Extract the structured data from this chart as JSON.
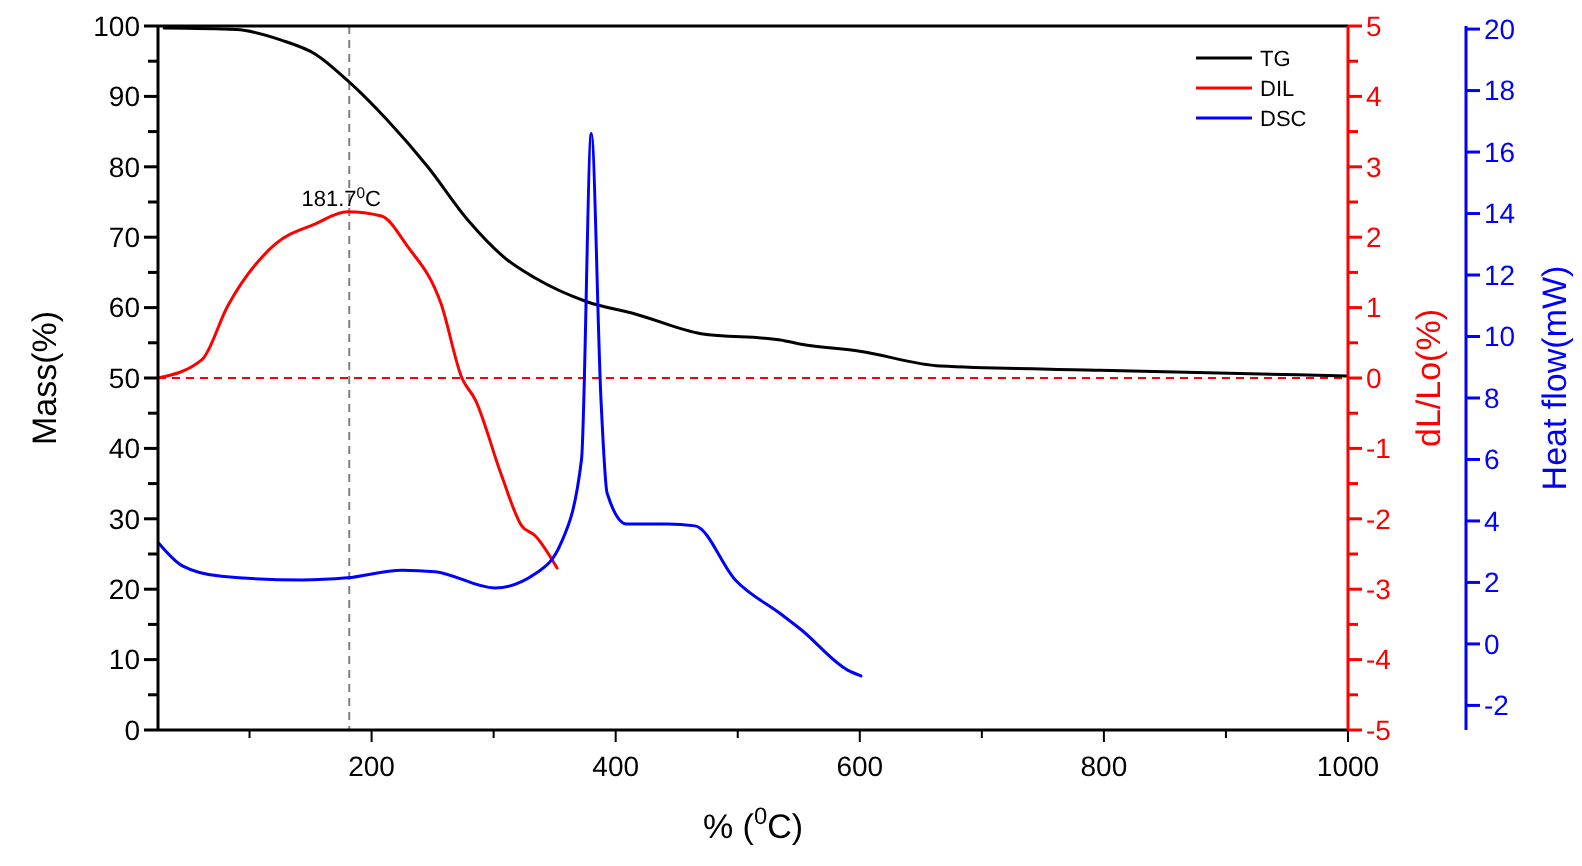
{
  "chart_data": {
    "type": "line",
    "xlabel": "% ($^{0}$C)",
    "ylabel": "Mass(%)",
    "y2label": "dL/Lo(%)",
    "y3label": "Heat flow(mW)",
    "xlim": [
      25,
      1000
    ],
    "xticks": [
      {
        "value": 100,
        "label": null
      },
      200,
      {
        "value": 300,
        "label": null
      },
      400,
      {
        "value": 500,
        "label": null
      },
      600,
      {
        "value": 700,
        "label": null
      },
      800,
      {
        "value": 900,
        "label": null
      },
      1000
    ],
    "ylim": [
      0,
      100
    ],
    "yticks": [
      0,
      {
        "value": 5,
        "label": null
      },
      10,
      {
        "value": 15,
        "label": null
      },
      20,
      {
        "value": 25,
        "label": null
      },
      30,
      {
        "value": 35,
        "label": null
      },
      40,
      {
        "value": 45,
        "label": null
      },
      50,
      {
        "value": 55,
        "label": null
      },
      60,
      {
        "value": 65,
        "label": null
      },
      70,
      {
        "value": 75,
        "label": null
      },
      80,
      {
        "value": 85,
        "label": null
      },
      90,
      {
        "value": 95,
        "label": null
      },
      100
    ],
    "y2lim": [
      -5,
      5
    ],
    "y2ticks": [
      -5,
      {
        "value": -4.5,
        "label": null
      },
      -4,
      {
        "value": -3.5,
        "label": null
      },
      -3,
      {
        "value": -2.5,
        "label": null
      },
      -2,
      {
        "value": -1.5,
        "label": null
      },
      -1,
      {
        "value": -0.5,
        "label": null
      },
      0,
      {
        "value": 0.5,
        "label": null
      },
      1,
      {
        "value": 1.5,
        "label": null
      },
      2,
      {
        "value": 2.5,
        "label": null
      },
      3,
      {
        "value": 3.5,
        "label": null
      },
      4,
      {
        "value": 4.5,
        "label": null
      },
      5
    ],
    "y3lim": [
      -2.8,
      20.1
    ],
    "y3ticks": [
      -2,
      0,
      2,
      4,
      6,
      8,
      10,
      12,
      14,
      16,
      18,
      20
    ],
    "legend": "top right",
    "grid": false,
    "marker": "none",
    "series": [
      {
        "name": "TG",
        "color": "#000000",
        "x": [
          30,
          89,
          126,
          154,
          180,
          213,
          246,
          279,
          311,
          334,
          377,
          416,
          470,
          535,
          552,
          600,
          666,
          797,
          999
        ],
        "values": [
          99.7,
          99.5,
          98,
          96,
          92.3,
          86.6,
          80,
          72.4,
          66.8,
          64.2,
          60.8,
          59.1,
          56.3,
          55.4,
          54.8,
          53.8,
          51.7,
          51.1,
          50.3
        ]
      },
      {
        "name": "DIL",
        "color": "#ff0000",
        "axis": "y2",
        "x": [
          25,
          61,
          82,
          121,
          154,
          180,
          208,
          229,
          257,
          274,
          285,
          306,
          323,
          334,
          352
        ],
        "values": [
          0,
          0.26,
          1.02,
          1.9,
          2.19,
          2.36,
          2.3,
          1.88,
          1.05,
          0,
          -0.31,
          -1.36,
          -2.1,
          -2.24,
          -2.7
        ]
      },
      {
        "name": "DSC",
        "color": "#0000ff",
        "axis": "y3",
        "x": [
          26,
          45,
          77,
          143,
          180,
          225,
          252,
          301,
          334,
          355,
          372,
          380,
          388,
          393,
          409,
          442,
          465,
          498,
          535,
          552,
          590,
          601
        ],
        "values": [
          3.26,
          2.54,
          2.2,
          2.08,
          2.15,
          2.4,
          2.35,
          1.82,
          2.28,
          3.26,
          6,
          16.6,
          7.9,
          4.9,
          3.9,
          3.9,
          3.84,
          2.08,
          0.98,
          0.46,
          -0.85,
          -1.04
        ]
      }
    ],
    "ref_lines": [
      {
        "axis": "x",
        "value": 181.7,
        "color": "#808080",
        "line_style": "dashed"
      },
      {
        "axis": "y2",
        "value": 0,
        "color": "#ff0000",
        "line_style": "dashed"
      }
    ],
    "annotations": [
      {
        "text": "181.7$^{0}$C",
        "x": 181.7,
        "y": 73.6
      }
    ]
  }
}
